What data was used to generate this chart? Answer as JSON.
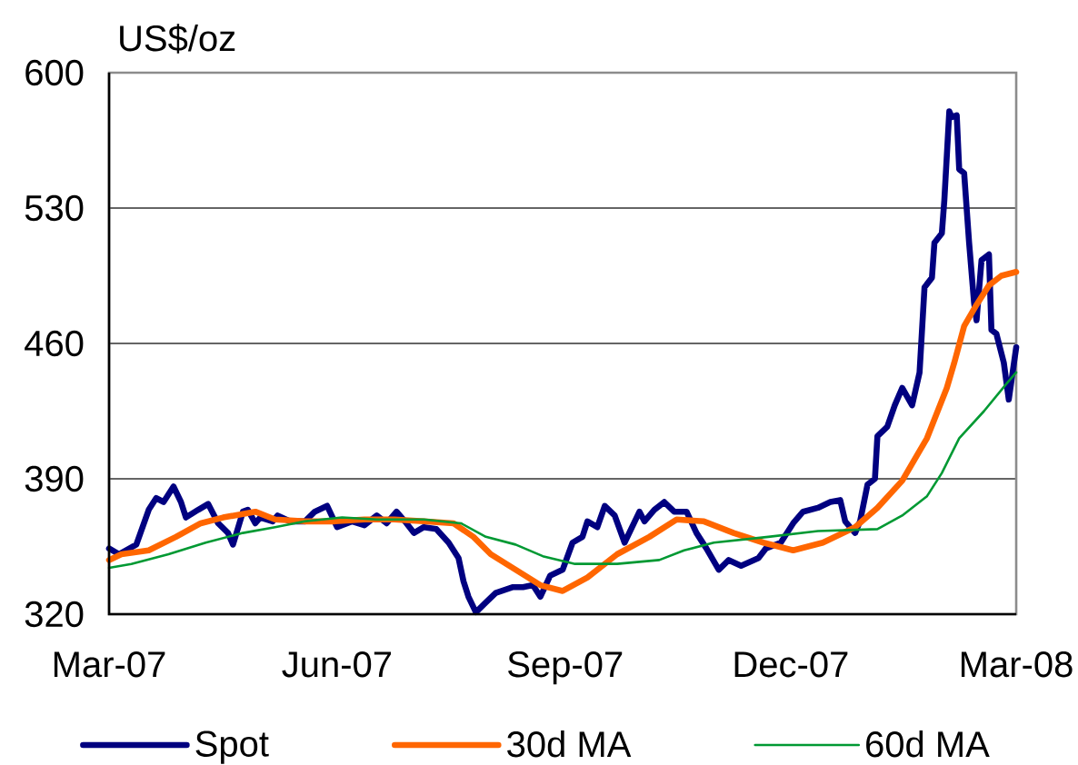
{
  "chart_data": {
    "type": "line",
    "ylabel": "US$/oz",
    "xlim": [
      "2007-03-01",
      "2008-03-01"
    ],
    "xticks": [
      {
        "value": "2007-03-01",
        "label": "Mar-07"
      },
      {
        "value": "2007-06-01",
        "label": "Jun-07"
      },
      {
        "value": "2007-09-01",
        "label": "Sep-07"
      },
      {
        "value": "2007-12-01",
        "label": "Dec-07"
      },
      {
        "value": "2008-03-01",
        "label": "Mar-08"
      }
    ],
    "ylim": [
      320,
      600
    ],
    "yticks": [
      320,
      390,
      460,
      530,
      600
    ],
    "grid": "y",
    "legend": "bottom",
    "marker": "none",
    "series": [
      {
        "name": "Spot",
        "color": "#000080",
        "x": [
          "2007-03-01",
          "2007-03-05",
          "2007-03-12",
          "2007-03-17",
          "2007-03-20",
          "2007-03-23",
          "2007-03-27",
          "2007-03-30",
          "2007-04-01",
          "2007-04-06",
          "2007-04-10",
          "2007-04-14",
          "2007-04-18",
          "2007-04-20",
          "2007-04-24",
          "2007-04-26",
          "2007-04-29",
          "2007-05-01",
          "2007-05-06",
          "2007-05-08",
          "2007-05-13",
          "2007-05-19",
          "2007-05-23",
          "2007-05-28",
          "2007-06-01",
          "2007-06-07",
          "2007-06-12",
          "2007-06-17",
          "2007-06-21",
          "2007-06-25",
          "2007-06-29",
          "2007-07-02",
          "2007-07-06",
          "2007-07-11",
          "2007-07-16",
          "2007-07-20",
          "2007-07-22",
          "2007-07-24",
          "2007-07-27",
          "2007-07-31",
          "2007-08-04",
          "2007-08-11",
          "2007-08-15",
          "2007-08-19",
          "2007-08-22",
          "2007-08-26",
          "2007-08-31",
          "2007-09-04",
          "2007-09-08",
          "2007-09-10",
          "2007-09-14",
          "2007-09-17",
          "2007-09-21",
          "2007-09-25",
          "2007-10-01",
          "2007-10-03",
          "2007-10-07",
          "2007-10-11",
          "2007-10-15",
          "2007-10-20",
          "2007-10-24",
          "2007-10-28",
          "2007-11-02",
          "2007-11-06",
          "2007-11-11",
          "2007-11-18",
          "2007-11-21",
          "2007-11-27",
          "2007-12-02",
          "2007-12-06",
          "2007-12-12",
          "2007-12-17",
          "2007-12-21",
          "2007-12-23",
          "2007-12-27",
          "2007-12-29",
          "2008-01-01",
          "2008-01-04",
          "2008-01-05",
          "2008-01-09",
          "2008-01-12",
          "2008-01-15",
          "2008-01-19",
          "2008-01-22",
          "2008-01-24",
          "2008-01-27",
          "2008-01-28",
          "2008-01-31",
          "2008-02-01",
          "2008-02-03",
          "2008-02-04",
          "2008-02-06",
          "2008-02-07",
          "2008-02-09",
          "2008-02-11",
          "2008-02-13",
          "2008-02-14",
          "2008-02-16",
          "2008-02-19",
          "2008-02-20",
          "2008-02-22",
          "2008-02-25",
          "2008-02-27",
          "2008-03-01"
        ],
        "values": [
          354,
          351,
          356,
          374,
          380,
          378,
          386,
          378,
          370,
          374,
          377,
          367,
          362,
          356,
          373,
          374,
          367,
          370,
          368,
          371,
          368,
          368,
          373,
          376,
          365,
          368,
          366,
          371,
          367,
          373,
          367,
          362,
          365,
          364,
          357,
          349,
          337,
          329,
          321,
          326,
          331,
          334,
          334,
          335,
          329,
          340,
          343,
          357,
          360,
          368,
          365,
          376,
          371,
          357,
          373,
          368,
          374,
          378,
          373,
          373,
          362,
          354,
          343,
          348,
          345,
          349,
          354,
          357,
          367,
          373,
          375,
          378,
          379,
          368,
          362,
          368,
          387,
          390,
          412,
          417,
          428,
          437,
          428,
          445,
          489,
          494,
          512,
          517,
          534,
          580,
          577,
          578,
          550,
          548,
          512,
          481,
          472,
          503,
          506,
          467,
          465,
          450,
          431,
          458
        ]
      },
      {
        "name": "30d MA",
        "color": "#ff6600",
        "x": [
          "2007-03-01",
          "2007-03-06",
          "2007-03-17",
          "2007-03-28",
          "2007-04-07",
          "2007-04-16",
          "2007-04-29",
          "2007-05-07",
          "2007-05-19",
          "2007-05-31",
          "2007-06-12",
          "2007-06-24",
          "2007-07-06",
          "2007-07-18",
          "2007-07-26",
          "2007-08-02",
          "2007-08-12",
          "2007-08-22",
          "2007-08-31",
          "2007-09-10",
          "2007-09-22",
          "2007-10-05",
          "2007-10-16",
          "2007-10-27",
          "2007-11-08",
          "2007-11-20",
          "2007-12-02",
          "2007-12-14",
          "2007-12-27",
          "2008-01-05",
          "2008-01-15",
          "2008-01-25",
          "2008-02-02",
          "2008-02-05",
          "2008-02-09",
          "2008-02-14",
          "2008-02-19",
          "2008-02-24",
          "2008-03-01"
        ],
        "values": [
          348,
          351,
          353,
          360,
          367,
          370,
          373,
          369,
          368,
          368,
          369,
          369,
          368,
          367,
          360,
          351,
          343,
          335,
          332,
          339,
          351,
          360,
          369,
          368,
          362,
          357,
          353,
          357,
          365,
          375,
          389,
          411,
          437,
          450,
          469,
          480,
          490,
          495,
          497
        ]
      },
      {
        "name": "60d MA",
        "color": "#009933",
        "x": [
          "2007-03-01",
          "2007-03-10",
          "2007-03-25",
          "2007-04-09",
          "2007-04-24",
          "2007-05-07",
          "2007-05-19",
          "2007-06-03",
          "2007-06-17",
          "2007-07-06",
          "2007-07-21",
          "2007-07-31",
          "2007-08-12",
          "2007-08-23",
          "2007-09-05",
          "2007-09-22",
          "2007-10-09",
          "2007-10-19",
          "2007-10-31",
          "2007-11-22",
          "2007-12-12",
          "2008-01-05",
          "2008-01-15",
          "2008-01-25",
          "2008-01-31",
          "2008-02-07",
          "2008-02-17",
          "2008-02-26",
          "2008-03-01"
        ],
        "values": [
          344,
          346,
          351,
          357,
          362,
          365,
          368,
          370,
          369,
          369,
          367,
          360,
          356,
          350,
          346,
          346,
          348,
          353,
          357,
          360,
          363,
          364,
          371,
          381,
          393,
          411,
          425,
          439,
          445
        ]
      }
    ]
  }
}
